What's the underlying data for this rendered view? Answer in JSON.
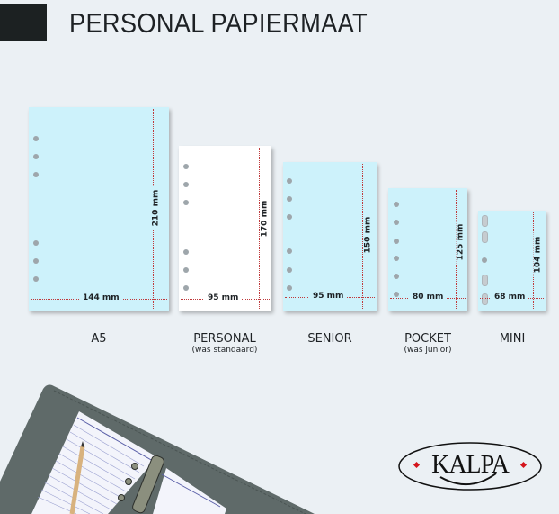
{
  "header": {
    "title": "PERSONAL PAPIERMAAT"
  },
  "sizes": [
    {
      "name": "A5",
      "subtitle": "",
      "width": "144 mm",
      "height": "210 mm",
      "color": "#cdf2fb",
      "holes": 6
    },
    {
      "name": "PERSONAL",
      "subtitle": "(was standaard)",
      "width": "95 mm",
      "height": "170 mm",
      "color": "#ffffff",
      "holes": 6
    },
    {
      "name": "SENIOR",
      "subtitle": "",
      "width": "95 mm",
      "height": "150 mm",
      "color": "#cdf2fb",
      "holes": 6
    },
    {
      "name": "POCKET",
      "subtitle": "(was junior)",
      "width": "80 mm",
      "height": "125 mm",
      "color": "#cdf2fb",
      "holes": 6
    },
    {
      "name": "MINI",
      "subtitle": "",
      "width": "68 mm",
      "height": "104 mm",
      "color": "#cdf2fb",
      "holes": 5
    }
  ],
  "logo": {
    "text": "KALPA"
  },
  "colors": {
    "dimension_line": "#c0393b",
    "sheet_blue": "#cdf2fb",
    "header_block": "#1c2122"
  }
}
